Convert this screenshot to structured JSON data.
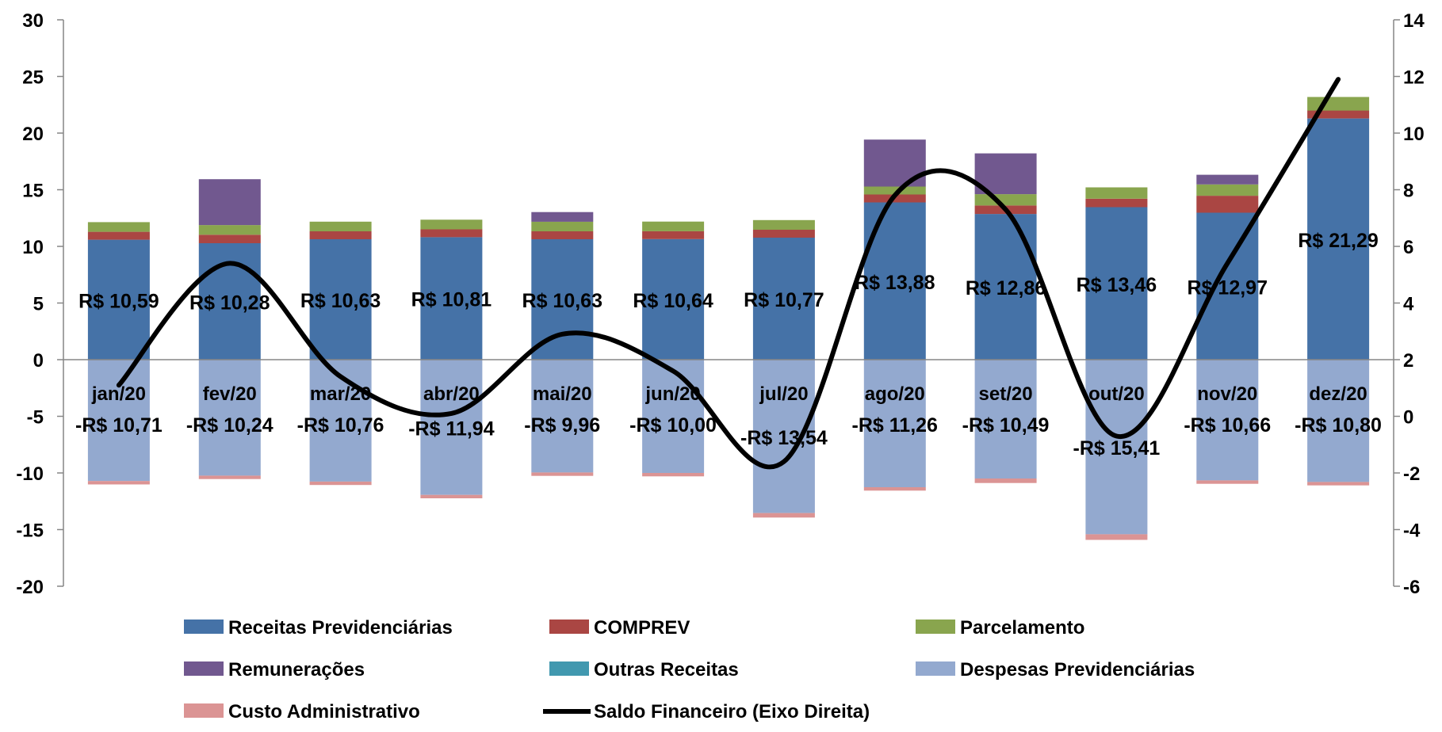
{
  "chart_data": {
    "type": "bar",
    "subtype": "stacked-bar-with-line",
    "categories": [
      "jan/20",
      "fev/20",
      "mar/20",
      "abr/20",
      "mai/20",
      "jun/20",
      "jul/20",
      "ago/20",
      "set/20",
      "out/20",
      "nov/20",
      "dez/20"
    ],
    "series": [
      {
        "name": "Receitas Previdenciárias",
        "color": "#4572A7",
        "axis": "left",
        "values": [
          10.59,
          10.28,
          10.63,
          10.81,
          10.63,
          10.64,
          10.77,
          13.88,
          12.86,
          13.46,
          12.97,
          21.29
        ]
      },
      {
        "name": "COMPREV",
        "color": "#AA4643",
        "axis": "left",
        "values": [
          0.7,
          0.75,
          0.7,
          0.7,
          0.7,
          0.7,
          0.7,
          0.7,
          0.75,
          0.75,
          1.5,
          0.7
        ]
      },
      {
        "name": "Parcelamento",
        "color": "#89A54E",
        "axis": "left",
        "values": [
          0.85,
          0.85,
          0.85,
          0.85,
          0.85,
          0.85,
          0.85,
          0.7,
          1.0,
          1.0,
          1.0,
          1.2
        ]
      },
      {
        "name": "Remunerações",
        "color": "#71588F",
        "axis": "left",
        "values": [
          0,
          4.05,
          0,
          0,
          0.85,
          0,
          0,
          4.15,
          3.6,
          0,
          0.85,
          0
        ]
      },
      {
        "name": "Outras Receitas",
        "color": "#4198AF",
        "axis": "left",
        "values": [
          0,
          0,
          0,
          0,
          0,
          0,
          0,
          0,
          0,
          0,
          0,
          0
        ]
      },
      {
        "name": "Despesas Previdenciárias",
        "color": "#93A9CF",
        "axis": "left",
        "values": [
          -10.71,
          -10.24,
          -10.76,
          -11.94,
          -9.96,
          -10.0,
          -13.54,
          -11.26,
          -10.49,
          -15.41,
          -10.66,
          -10.8
        ]
      },
      {
        "name": "Custo Administrativo",
        "color": "#DB9494",
        "axis": "left",
        "values": [
          -0.3,
          -0.3,
          -0.3,
          -0.3,
          -0.3,
          -0.3,
          -0.4,
          -0.3,
          -0.4,
          -0.5,
          -0.3,
          -0.3
        ]
      },
      {
        "name": "Saldo Financeiro (Eixo Direita)",
        "color": "#000000",
        "axis": "right",
        "type": "line",
        "values": [
          1.1,
          5.4,
          1.4,
          0.1,
          2.9,
          1.6,
          -1.6,
          7.8,
          7.3,
          -0.7,
          5.4,
          11.9
        ]
      }
    ],
    "receita_labels": [
      "R$ 10,59",
      "R$ 10,28",
      "R$ 10,63",
      "R$ 10,81",
      "R$ 10,63",
      "R$ 10,64",
      "R$ 10,77",
      "R$ 13,88",
      "R$ 12,86",
      "R$ 13,46",
      "R$ 12,97",
      "R$ 21,29"
    ],
    "despesa_labels": [
      "-R$ 10,71",
      "-R$ 10,24",
      "-R$ 10,76",
      "-R$ 11,94",
      "-R$ 9,96",
      "-R$ 10,00",
      "-R$ 13,54",
      "-R$ 11,26",
      "-R$ 10,49",
      "-R$ 15,41",
      "-R$ 10,66",
      "-R$ 10,80"
    ],
    "left_axis": {
      "ylim": [
        -20,
        30
      ],
      "ticks": [
        "-20",
        "-15",
        "-10",
        "-5",
        "0",
        "5",
        "10",
        "15",
        "20",
        "25",
        "30"
      ]
    },
    "right_axis": {
      "ylim": [
        -6,
        14
      ],
      "ticks": [
        "-6",
        "-4",
        "-2",
        "0",
        "2",
        "4",
        "6",
        "8",
        "10",
        "12",
        "14"
      ]
    },
    "title": "",
    "xlabel": "",
    "ylabel": "",
    "grid": false,
    "legend_position": "bottom"
  }
}
